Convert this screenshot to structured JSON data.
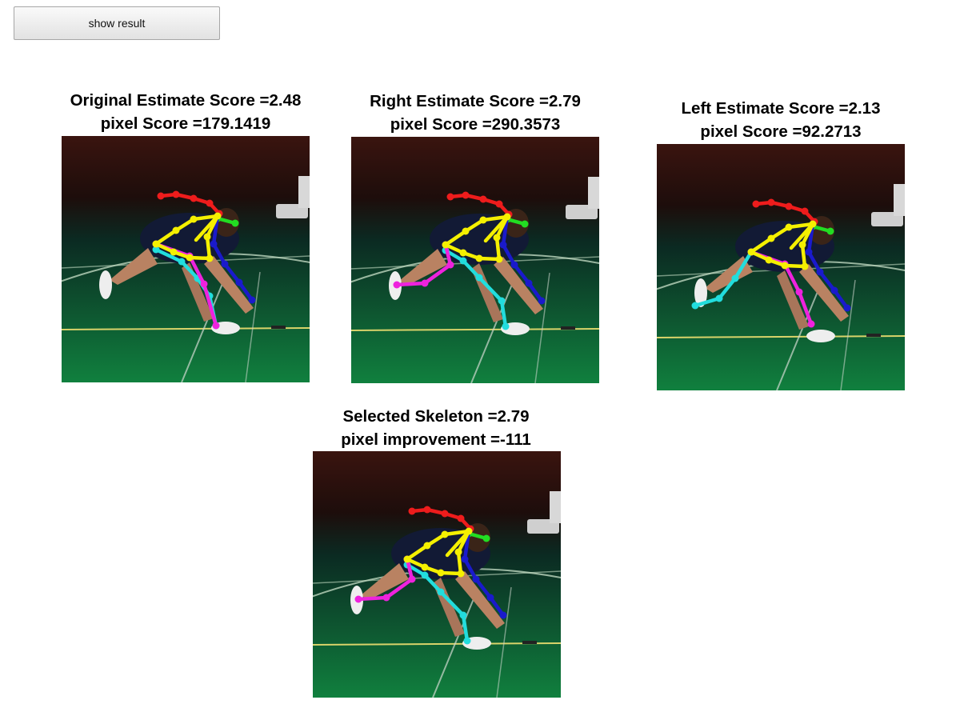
{
  "toolbar": {
    "show_result_label": "show result"
  },
  "panels": [
    {
      "id": "original",
      "title_line1": "Original Estimate Score =2.48",
      "title_line2": "pixel Score =179.1419",
      "variant": "original"
    },
    {
      "id": "right",
      "title_line1": "Right Estimate Score =2.79",
      "title_line2": "pixel Score =290.3573",
      "variant": "right"
    },
    {
      "id": "left",
      "title_line1": "Left Estimate Score =2.13",
      "title_line2": "pixel Score =92.2713",
      "variant": "left"
    },
    {
      "id": "selected",
      "title_line1": "Selected Skeleton =2.79",
      "title_line2": "pixel improvement =-111",
      "variant": "right"
    }
  ],
  "skeleton_colors": {
    "head": "#ee1c1c",
    "neck": "#22dd22",
    "torso": "#f5f000",
    "right_arm": "#1a1acc",
    "left_arm": "#ee22dd",
    "leg": "#22dddd"
  }
}
